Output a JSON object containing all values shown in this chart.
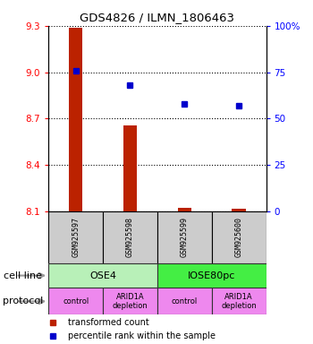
{
  "title": "GDS4826 / ILMN_1806463",
  "samples": [
    "GSM925597",
    "GSM925598",
    "GSM925599",
    "GSM925600"
  ],
  "bar_values": [
    9.29,
    8.655,
    8.125,
    8.12
  ],
  "bar_baseline": 8.1,
  "percentile_values": [
    76,
    68,
    58,
    57
  ],
  "left_yticks": [
    8.1,
    8.4,
    8.7,
    9.0,
    9.3
  ],
  "right_yticks": [
    0,
    25,
    50,
    75,
    100
  ],
  "ylim_left": [
    8.1,
    9.3
  ],
  "ylim_right": [
    0,
    100
  ],
  "bar_color": "#bb2200",
  "dot_color": "#0000cc",
  "bar_width": 0.25,
  "cell_line_labels": [
    "OSE4",
    "IOSE80pc"
  ],
  "cell_line_spans": [
    [
      0,
      1
    ],
    [
      2,
      3
    ]
  ],
  "cell_line_colors": [
    "#b8f0b8",
    "#44ee44"
  ],
  "protocol_labels": [
    "control",
    "ARID1A\ndepletion",
    "control",
    "ARID1A\ndepletion"
  ],
  "protocol_color": "#ee88ee",
  "gsm_box_color": "#cccccc",
  "legend_red": "transformed count",
  "legend_blue": "percentile rank within the sample",
  "cell_line_row_label": "cell line",
  "protocol_row_label": "protocol",
  "arrow_color": "#999999"
}
